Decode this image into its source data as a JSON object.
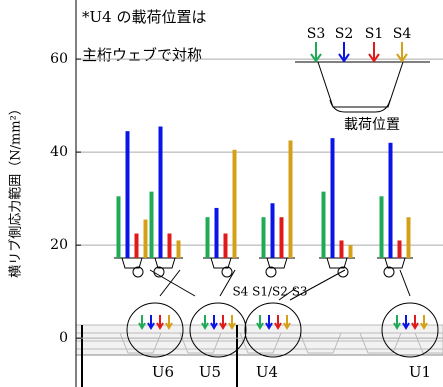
{
  "chart_data": {
    "type": "bar",
    "ylabel": "横リブ側応力範囲（N/mm²）",
    "annotations": [
      "*U4 の載荷位置は",
      "主桁ウェブで対称",
      "載荷位置",
      "S4 S1/S2 S3",
      "U6",
      "U5",
      "U4",
      "U1"
    ],
    "legend_labels": [
      "S3",
      "S2",
      "S1",
      "S4"
    ],
    "series": [
      {
        "name": "S3",
        "color": "#1faa55",
        "values": [
          30.5,
          31.5,
          26,
          26,
          31.5,
          30.5
        ]
      },
      {
        "name": "S2",
        "color": "#0a14e6",
        "values": [
          44.5,
          45.5,
          28,
          29,
          43,
          42
        ]
      },
      {
        "name": "S1",
        "color": "#e01a1a",
        "values": [
          22.5,
          22.5,
          22.5,
          26,
          21,
          21
        ]
      },
      {
        "name": "S4",
        "color": "#d4a017",
        "values": [
          25.5,
          21,
          40.5,
          42.5,
          20,
          26
        ]
      }
    ],
    "ylim": [
      -10.5,
      72.7
    ],
    "yticks": [
      0,
      20,
      40,
      60
    ],
    "grid": true
  }
}
